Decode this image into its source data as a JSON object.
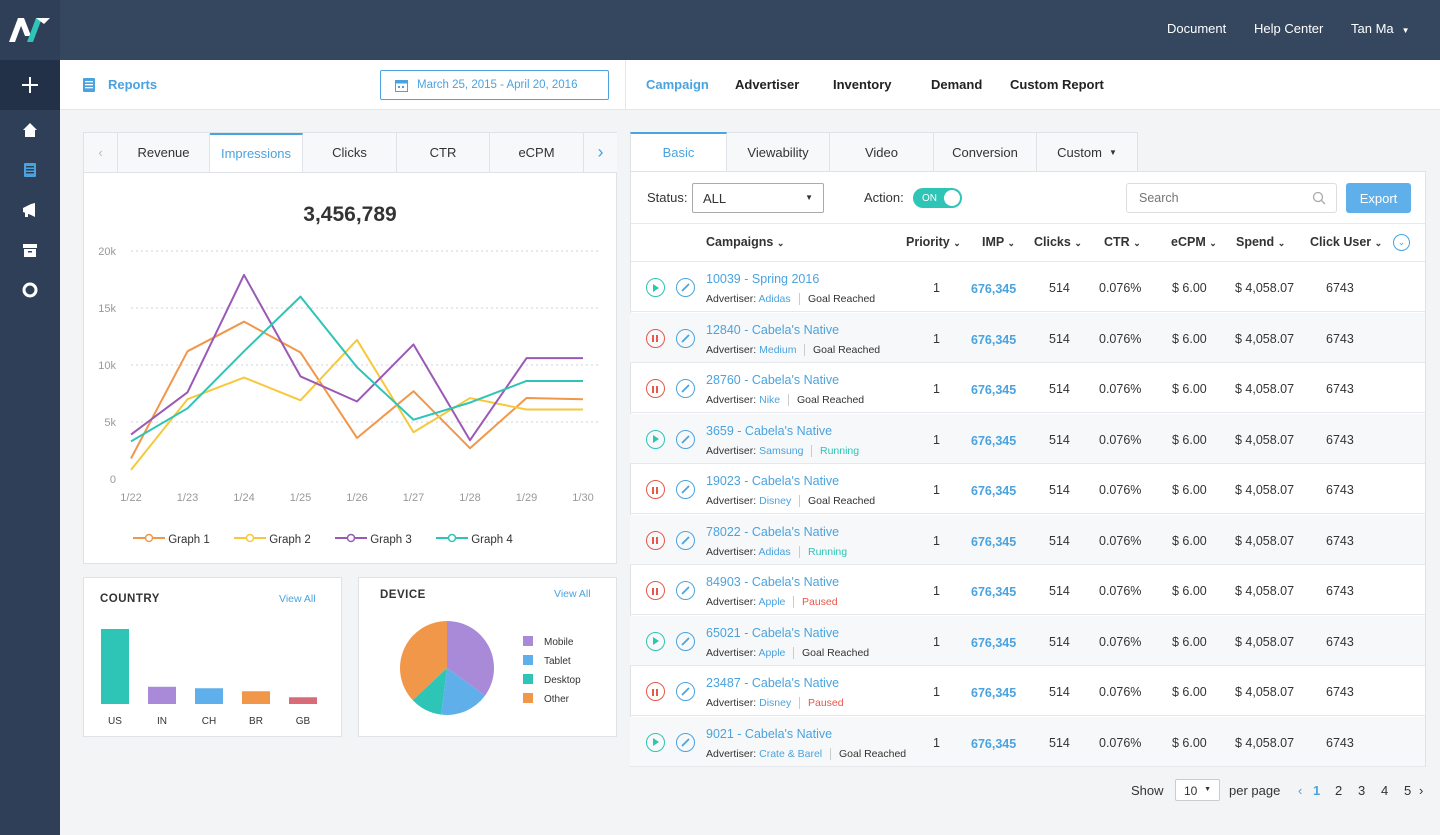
{
  "topbar": {
    "document": "Document",
    "help": "Help Center",
    "user": "Tan Ma"
  },
  "subheader": {
    "reports": "Reports",
    "date_range": "March 25, 2015 - April 20, 2016",
    "tabs": [
      "Campaign",
      "Advertiser",
      "Inventory",
      "Demand",
      "Custom Report"
    ]
  },
  "metric_tabs": [
    "Revenue",
    "Impressions",
    "Clicks",
    "CTR",
    "eCPM"
  ],
  "big_number": "3,456,789",
  "chart_data": [
    {
      "type": "line",
      "title": "3,456,789",
      "x": [
        "1/22",
        "1/23",
        "1/24",
        "1/25",
        "1/26",
        "1/27",
        "1/28",
        "1/29",
        "1/30"
      ],
      "yticks": [
        "20k",
        "15k",
        "10k",
        "5k",
        "0"
      ],
      "ylim": [
        0,
        20000
      ],
      "series": [
        {
          "name": "Graph 1",
          "color": "#f0974a",
          "values": [
            1800,
            11200,
            13800,
            11100,
            3600,
            7700,
            2700,
            7100,
            7000
          ]
        },
        {
          "name": "Graph 2",
          "color": "#f5c93b",
          "values": [
            800,
            7000,
            8900,
            6900,
            12200,
            4100,
            7100,
            6100,
            6100
          ]
        },
        {
          "name": "Graph 3",
          "color": "#9b59b6",
          "values": [
            3900,
            7600,
            17900,
            9000,
            6800,
            11800,
            3400,
            10600,
            10600
          ]
        },
        {
          "name": "Graph 4",
          "color": "#2ec4b6",
          "values": [
            3300,
            6200,
            11200,
            16000,
            9800,
            5200,
            6700,
            8600,
            8600
          ]
        }
      ]
    },
    {
      "type": "bar",
      "title": "COUNTRY",
      "categories": [
        "US",
        "IN",
        "CH",
        "BR",
        "GB"
      ],
      "values": [
        100,
        23,
        21,
        17,
        9
      ],
      "colors": [
        "#2ec4b6",
        "#a98ad9",
        "#5fb0ea",
        "#f0974a",
        "#d96b78"
      ]
    },
    {
      "type": "pie",
      "title": "DEVICE",
      "categories": [
        "Mobile",
        "Tablet",
        "Desktop",
        "Other"
      ],
      "values": [
        35,
        17,
        11,
        37
      ],
      "colors": [
        "#a98ad9",
        "#5fb0ea",
        "#2ec4b6",
        "#f0974a"
      ]
    }
  ],
  "country": {
    "title": "COUNTRY",
    "view_all": "View All"
  },
  "device": {
    "title": "DEVICE",
    "view_all": "View All"
  },
  "table_tabs": [
    "Basic",
    "Viewability",
    "Video",
    "Conversion",
    "Custom"
  ],
  "filters": {
    "status_label": "Status:",
    "status_value": "ALL",
    "action_label": "Action:",
    "toggle": "ON",
    "search_placeholder": "Search",
    "export": "Export"
  },
  "columns": [
    "Campaigns",
    "Priority",
    "IMP",
    "Clicks",
    "CTR",
    "eCPM",
    "Spend",
    "Click User"
  ],
  "rows": [
    {
      "name": "10039 - Spring 2016",
      "adv_label": "Advertiser:",
      "advertiser": "Adidas",
      "state": "Goal Reached",
      "priority": "1",
      "imp": "676,345",
      "clicks": "514",
      "ctr": "0.076%",
      "ecpm": "$ 6.00",
      "spend": "$ 4,058.07",
      "users": "6743",
      "playing": false
    },
    {
      "name": "12840 - Cabela's Native",
      "adv_label": "Advertiser:",
      "advertiser": "Medium",
      "state": "Goal Reached",
      "priority": "1",
      "imp": "676,345",
      "clicks": "514",
      "ctr": "0.076%",
      "ecpm": "$ 6.00",
      "spend": "$ 4,058.07",
      "users": "6743",
      "playing": true
    },
    {
      "name": "28760 - Cabela's Native",
      "adv_label": "Advertiser:",
      "advertiser": "Nike",
      "state": "Goal Reached",
      "priority": "1",
      "imp": "676,345",
      "clicks": "514",
      "ctr": "0.076%",
      "ecpm": "$ 6.00",
      "spend": "$ 4,058.07",
      "users": "6743",
      "playing": true
    },
    {
      "name": "3659 - Cabela's Native",
      "adv_label": "Advertiser:",
      "advertiser": "Samsung",
      "state": "Running",
      "priority": "1",
      "imp": "676,345",
      "clicks": "514",
      "ctr": "0.076%",
      "ecpm": "$ 6.00",
      "spend": "$ 4,058.07",
      "users": "6743",
      "playing": false
    },
    {
      "name": "19023 - Cabela's Native",
      "adv_label": "Advertiser:",
      "advertiser": "Disney",
      "state": "Goal Reached",
      "priority": "1",
      "imp": "676,345",
      "clicks": "514",
      "ctr": "0.076%",
      "ecpm": "$ 6.00",
      "spend": "$ 4,058.07",
      "users": "6743",
      "playing": true
    },
    {
      "name": "78022 - Cabela's Native",
      "adv_label": "Advertiser:",
      "advertiser": "Adidas",
      "state": "Running",
      "priority": "1",
      "imp": "676,345",
      "clicks": "514",
      "ctr": "0.076%",
      "ecpm": "$ 6.00",
      "spend": "$ 4,058.07",
      "users": "6743",
      "playing": true
    },
    {
      "name": "84903 - Cabela's Native",
      "adv_label": "Advertiser:",
      "advertiser": "Apple",
      "state": "Paused",
      "priority": "1",
      "imp": "676,345",
      "clicks": "514",
      "ctr": "0.076%",
      "ecpm": "$ 6.00",
      "spend": "$ 4,058.07",
      "users": "6743",
      "playing": true
    },
    {
      "name": "65021 - Cabela's Native",
      "adv_label": "Advertiser:",
      "advertiser": "Apple",
      "state": "Goal Reached",
      "priority": "1",
      "imp": "676,345",
      "clicks": "514",
      "ctr": "0.076%",
      "ecpm": "$ 6.00",
      "spend": "$ 4,058.07",
      "users": "6743",
      "playing": false
    },
    {
      "name": "23487 - Cabela's Native",
      "adv_label": "Advertiser:",
      "advertiser": "Disney",
      "state": "Paused",
      "priority": "1",
      "imp": "676,345",
      "clicks": "514",
      "ctr": "0.076%",
      "ecpm": "$ 6.00",
      "spend": "$ 4,058.07",
      "users": "6743",
      "playing": true
    },
    {
      "name": "9021 - Cabela's Native",
      "adv_label": "Advertiser:",
      "advertiser": "Crate & Barel",
      "state": "Goal Reached",
      "priority": "1",
      "imp": "676,345",
      "clicks": "514",
      "ctr": "0.076%",
      "ecpm": "$ 6.00",
      "spend": "$ 4,058.07",
      "users": "6743",
      "playing": false
    }
  ],
  "state_colors": {
    "Goal Reached": "#333333",
    "Running": "#2ec4b6",
    "Paused": "#e8574a"
  },
  "pagination": {
    "show": "Show",
    "per_page_value": "10",
    "per_page": "per page",
    "pages": [
      "1",
      "2",
      "3",
      "4",
      "5"
    ],
    "current": "1"
  },
  "colors": {
    "accent": "#4aa3df",
    "sidebar": "#2f3f58",
    "topbar": "#35465f",
    "teal": "#2ec4b6",
    "red": "#e8574a"
  }
}
